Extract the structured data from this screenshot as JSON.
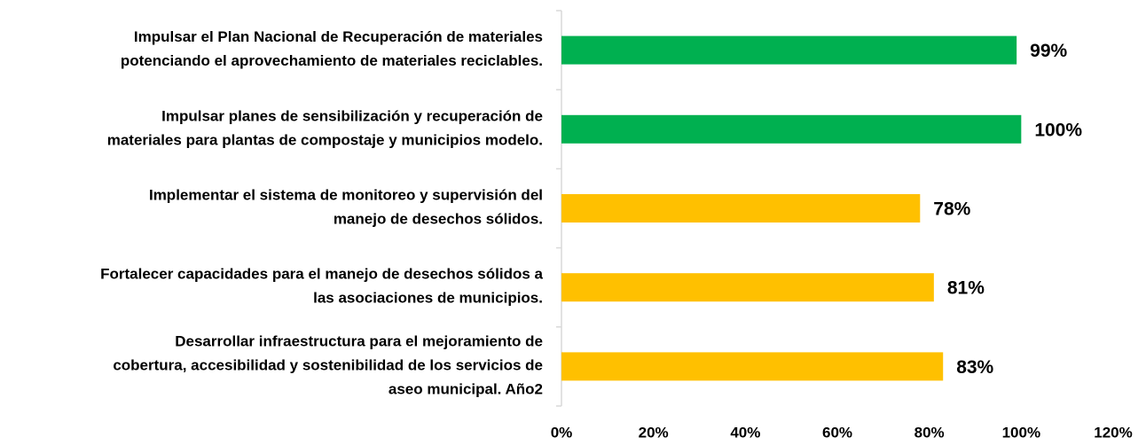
{
  "chart_data": {
    "type": "bar",
    "orientation": "horizontal",
    "categories": [
      [
        "Impulsar el Plan Nacional de Recuperación de materiales",
        "potenciando el aprovechamiento de materiales reciclables."
      ],
      [
        "Impulsar planes de sensibilización y recuperación de",
        "materiales para plantas de compostaje y municipios modelo."
      ],
      [
        "Implementar el sistema de monitoreo y supervisión del",
        "manejo de desechos sólidos."
      ],
      [
        "Fortalecer capacidades para el manejo de desechos sólidos a",
        "las asociaciones de municipios."
      ],
      [
        "Desarrollar infraestructura para el mejoramiento de",
        "cobertura, accesibilidad y sostenibilidad de los servicios de",
        "aseo municipal. Año2"
      ]
    ],
    "values": [
      99,
      100,
      78,
      81,
      83
    ],
    "value_labels": [
      "99%",
      "100%",
      "78%",
      "81%",
      "83%"
    ],
    "colors": [
      "#00b050",
      "#00b050",
      "#ffc000",
      "#ffc000",
      "#ffc000"
    ],
    "xlim": [
      0,
      120
    ],
    "xticks": [
      {
        "value": 0,
        "label": "0%"
      },
      {
        "value": 20,
        "label": "20%"
      },
      {
        "value": 40,
        "label": "40%"
      },
      {
        "value": 60,
        "label": "60%"
      },
      {
        "value": 80,
        "label": "80%"
      },
      {
        "value": 100,
        "label": "100%"
      },
      {
        "value": 120,
        "label": "120%"
      }
    ],
    "grid": false
  }
}
